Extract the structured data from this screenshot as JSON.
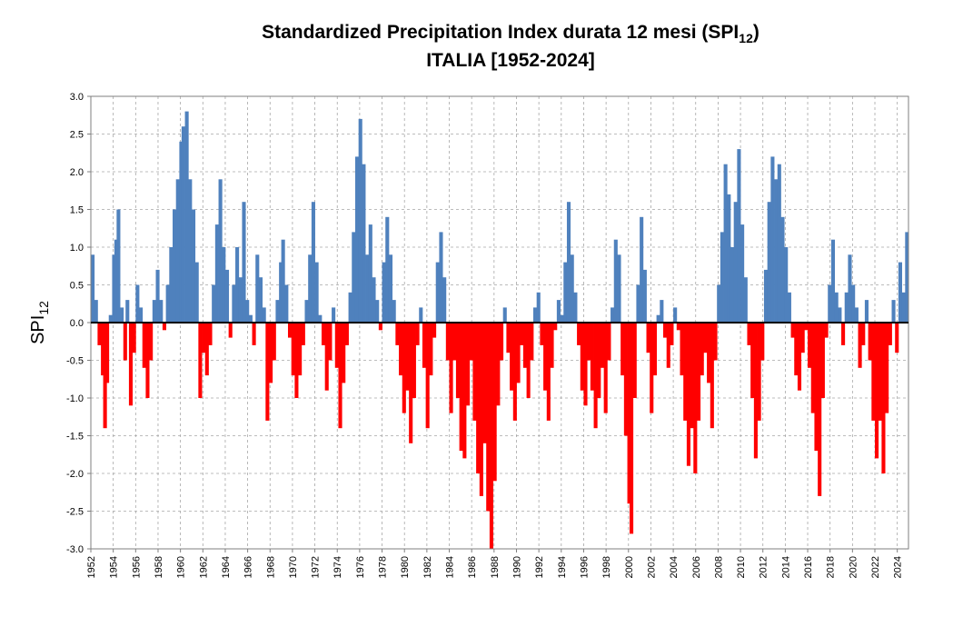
{
  "chart_data": {
    "type": "bar",
    "title_main": "Standardized Precipitation Index durata 12 mesi (SPI",
    "title_sub": "12",
    "title_end": ")",
    "title_line2": "ITALIA [1952-2024]",
    "ylabel_main": "SPI",
    "ylabel_sub": "12",
    "ylim": [
      -3.0,
      3.0
    ],
    "yticks": [
      "3.0",
      "2.5",
      "2.0",
      "1.5",
      "1.0",
      "0.5",
      "0.0",
      "-0.5",
      "-1.0",
      "-1.5",
      "-2.0",
      "-2.5",
      "-3.0"
    ],
    "xlim": [
      1952,
      2025
    ],
    "xticks": [
      "1952",
      "1954",
      "1956",
      "1958",
      "1960",
      "1962",
      "1964",
      "1966",
      "1968",
      "1970",
      "1972",
      "1974",
      "1976",
      "1978",
      "1980",
      "1982",
      "1984",
      "1986",
      "1988",
      "1990",
      "1992",
      "1994",
      "1996",
      "1998",
      "2000",
      "2002",
      "2004",
      "2006",
      "2008",
      "2010",
      "2012",
      "2014",
      "2016",
      "2018",
      "2020",
      "2022",
      "2024"
    ],
    "grid": true,
    "colors": {
      "positive": "#4f81bd",
      "negative": "#ff0000"
    },
    "series": [
      {
        "values": [
          {
            "x": 1952.0,
            "y": 0.9
          },
          {
            "x": 1952.3,
            "y": 0.3
          },
          {
            "x": 1952.6,
            "y": -0.3
          },
          {
            "x": 1952.9,
            "y": -0.7
          },
          {
            "x": 1953.1,
            "y": -1.4
          },
          {
            "x": 1953.3,
            "y": -0.8
          },
          {
            "x": 1953.6,
            "y": 0.1
          },
          {
            "x": 1953.9,
            "y": 0.9
          },
          {
            "x": 1954.1,
            "y": 1.1
          },
          {
            "x": 1954.3,
            "y": 1.5
          },
          {
            "x": 1954.6,
            "y": 0.2
          },
          {
            "x": 1954.9,
            "y": -0.5
          },
          {
            "x": 1955.1,
            "y": 0.3
          },
          {
            "x": 1955.4,
            "y": -1.1
          },
          {
            "x": 1955.7,
            "y": -0.4
          },
          {
            "x": 1956.0,
            "y": 0.5
          },
          {
            "x": 1956.3,
            "y": 0.2
          },
          {
            "x": 1956.6,
            "y": -0.6
          },
          {
            "x": 1956.9,
            "y": -1.0
          },
          {
            "x": 1957.2,
            "y": -0.5
          },
          {
            "x": 1957.5,
            "y": 0.3
          },
          {
            "x": 1957.8,
            "y": 0.7
          },
          {
            "x": 1958.1,
            "y": 0.3
          },
          {
            "x": 1958.4,
            "y": -0.1
          },
          {
            "x": 1958.7,
            "y": 0.5
          },
          {
            "x": 1959.0,
            "y": 1.0
          },
          {
            "x": 1959.3,
            "y": 1.5
          },
          {
            "x": 1959.6,
            "y": 1.9
          },
          {
            "x": 1959.9,
            "y": 2.4
          },
          {
            "x": 1960.1,
            "y": 2.6
          },
          {
            "x": 1960.4,
            "y": 2.8
          },
          {
            "x": 1960.7,
            "y": 1.9
          },
          {
            "x": 1961.0,
            "y": 1.5
          },
          {
            "x": 1961.3,
            "y": 0.8
          },
          {
            "x": 1961.6,
            "y": -1.0
          },
          {
            "x": 1961.9,
            "y": -0.4
          },
          {
            "x": 1962.2,
            "y": -0.7
          },
          {
            "x": 1962.5,
            "y": -0.3
          },
          {
            "x": 1962.8,
            "y": 0.5
          },
          {
            "x": 1963.1,
            "y": 1.3
          },
          {
            "x": 1963.4,
            "y": 1.9
          },
          {
            "x": 1963.7,
            "y": 1.0
          },
          {
            "x": 1964.0,
            "y": 0.7
          },
          {
            "x": 1964.3,
            "y": -0.2
          },
          {
            "x": 1964.6,
            "y": 0.5
          },
          {
            "x": 1964.9,
            "y": 1.0
          },
          {
            "x": 1965.2,
            "y": 0.6
          },
          {
            "x": 1965.5,
            "y": 1.6
          },
          {
            "x": 1965.8,
            "y": 0.3
          },
          {
            "x": 1966.1,
            "y": 0.1
          },
          {
            "x": 1966.4,
            "y": -0.3
          },
          {
            "x": 1966.7,
            "y": 0.9
          },
          {
            "x": 1967.0,
            "y": 0.6
          },
          {
            "x": 1967.3,
            "y": 0.2
          },
          {
            "x": 1967.6,
            "y": -1.3
          },
          {
            "x": 1967.9,
            "y": -0.8
          },
          {
            "x": 1968.2,
            "y": -0.5
          },
          {
            "x": 1968.5,
            "y": 0.3
          },
          {
            "x": 1968.8,
            "y": 0.8
          },
          {
            "x": 1969.0,
            "y": 1.1
          },
          {
            "x": 1969.3,
            "y": 0.5
          },
          {
            "x": 1969.6,
            "y": -0.2
          },
          {
            "x": 1969.9,
            "y": -0.7
          },
          {
            "x": 1970.2,
            "y": -1.0
          },
          {
            "x": 1970.5,
            "y": -0.7
          },
          {
            "x": 1970.8,
            "y": -0.3
          },
          {
            "x": 1971.1,
            "y": 0.3
          },
          {
            "x": 1971.4,
            "y": 0.9
          },
          {
            "x": 1971.7,
            "y": 1.6
          },
          {
            "x": 1972.0,
            "y": 0.8
          },
          {
            "x": 1972.3,
            "y": 0.1
          },
          {
            "x": 1972.6,
            "y": -0.3
          },
          {
            "x": 1972.9,
            "y": -0.9
          },
          {
            "x": 1973.2,
            "y": -0.5
          },
          {
            "x": 1973.5,
            "y": 0.2
          },
          {
            "x": 1973.8,
            "y": -0.6
          },
          {
            "x": 1974.1,
            "y": -1.4
          },
          {
            "x": 1974.4,
            "y": -0.8
          },
          {
            "x": 1974.7,
            "y": -0.3
          },
          {
            "x": 1975.0,
            "y": 0.4
          },
          {
            "x": 1975.3,
            "y": 1.2
          },
          {
            "x": 1975.6,
            "y": 2.2
          },
          {
            "x": 1975.9,
            "y": 2.7
          },
          {
            "x": 1976.2,
            "y": 2.1
          },
          {
            "x": 1976.5,
            "y": 0.9
          },
          {
            "x": 1976.8,
            "y": 1.3
          },
          {
            "x": 1977.1,
            "y": 0.6
          },
          {
            "x": 1977.4,
            "y": 0.3
          },
          {
            "x": 1977.7,
            "y": -0.1
          },
          {
            "x": 1978.0,
            "y": 0.8
          },
          {
            "x": 1978.3,
            "y": 1.4
          },
          {
            "x": 1978.6,
            "y": 0.9
          },
          {
            "x": 1978.9,
            "y": 0.3
          },
          {
            "x": 1979.2,
            "y": -0.3
          },
          {
            "x": 1979.5,
            "y": -0.7
          },
          {
            "x": 1979.8,
            "y": -1.2
          },
          {
            "x": 1980.1,
            "y": -0.9
          },
          {
            "x": 1980.4,
            "y": -1.6
          },
          {
            "x": 1980.7,
            "y": -1.0
          },
          {
            "x": 1981.0,
            "y": -0.3
          },
          {
            "x": 1981.3,
            "y": 0.2
          },
          {
            "x": 1981.6,
            "y": -0.6
          },
          {
            "x": 1981.9,
            "y": -1.4
          },
          {
            "x": 1982.2,
            "y": -0.7
          },
          {
            "x": 1982.5,
            "y": -0.2
          },
          {
            "x": 1982.8,
            "y": 0.8
          },
          {
            "x": 1983.1,
            "y": 1.2
          },
          {
            "x": 1983.4,
            "y": 0.6
          },
          {
            "x": 1983.7,
            "y": -0.5
          },
          {
            "x": 1984.0,
            "y": -1.2
          },
          {
            "x": 1984.3,
            "y": -0.5
          },
          {
            "x": 1984.6,
            "y": -1.0
          },
          {
            "x": 1984.9,
            "y": -1.7
          },
          {
            "x": 1985.2,
            "y": -1.8
          },
          {
            "x": 1985.5,
            "y": -1.1
          },
          {
            "x": 1985.8,
            "y": -0.5
          },
          {
            "x": 1986.1,
            "y": -1.3
          },
          {
            "x": 1986.4,
            "y": -2.0
          },
          {
            "x": 1986.7,
            "y": -2.3
          },
          {
            "x": 1987.0,
            "y": -1.6
          },
          {
            "x": 1987.3,
            "y": -2.5
          },
          {
            "x": 1987.6,
            "y": -3.0
          },
          {
            "x": 1987.9,
            "y": -2.1
          },
          {
            "x": 1988.2,
            "y": -1.1
          },
          {
            "x": 1988.5,
            "y": -0.5
          },
          {
            "x": 1988.8,
            "y": 0.2
          },
          {
            "x": 1989.1,
            "y": -0.4
          },
          {
            "x": 1989.4,
            "y": -0.9
          },
          {
            "x": 1989.7,
            "y": -1.3
          },
          {
            "x": 1990.0,
            "y": -0.8
          },
          {
            "x": 1990.3,
            "y": -0.3
          },
          {
            "x": 1990.6,
            "y": -0.6
          },
          {
            "x": 1990.9,
            "y": -1.0
          },
          {
            "x": 1991.2,
            "y": -0.5
          },
          {
            "x": 1991.5,
            "y": 0.2
          },
          {
            "x": 1991.8,
            "y": 0.4
          },
          {
            "x": 1992.1,
            "y": -0.3
          },
          {
            "x": 1992.4,
            "y": -0.9
          },
          {
            "x": 1992.7,
            "y": -1.3
          },
          {
            "x": 1993.0,
            "y": -0.6
          },
          {
            "x": 1993.3,
            "y": -0.1
          },
          {
            "x": 1993.6,
            "y": 0.3
          },
          {
            "x": 1993.9,
            "y": 0.1
          },
          {
            "x": 1994.2,
            "y": 0.8
          },
          {
            "x": 1994.5,
            "y": 1.6
          },
          {
            "x": 1994.8,
            "y": 0.9
          },
          {
            "x": 1995.1,
            "y": 0.4
          },
          {
            "x": 1995.4,
            "y": -0.3
          },
          {
            "x": 1995.7,
            "y": -0.9
          },
          {
            "x": 1996.0,
            "y": -1.1
          },
          {
            "x": 1996.3,
            "y": -0.5
          },
          {
            "x": 1996.6,
            "y": -0.9
          },
          {
            "x": 1996.9,
            "y": -1.4
          },
          {
            "x": 1997.2,
            "y": -1.0
          },
          {
            "x": 1997.5,
            "y": -0.6
          },
          {
            "x": 1997.8,
            "y": -1.2
          },
          {
            "x": 1998.1,
            "y": -0.5
          },
          {
            "x": 1998.4,
            "y": 0.2
          },
          {
            "x": 1998.7,
            "y": 1.1
          },
          {
            "x": 1999.0,
            "y": 0.9
          },
          {
            "x": 1999.3,
            "y": -0.7
          },
          {
            "x": 1999.6,
            "y": -1.5
          },
          {
            "x": 1999.9,
            "y": -2.4
          },
          {
            "x": 2000.1,
            "y": -2.8
          },
          {
            "x": 2000.4,
            "y": -1.0
          },
          {
            "x": 2000.7,
            "y": 0.5
          },
          {
            "x": 2001.0,
            "y": 1.4
          },
          {
            "x": 2001.3,
            "y": 0.7
          },
          {
            "x": 2001.6,
            "y": -0.4
          },
          {
            "x": 2001.9,
            "y": -1.2
          },
          {
            "x": 2002.2,
            "y": -0.7
          },
          {
            "x": 2002.5,
            "y": 0.1
          },
          {
            "x": 2002.8,
            "y": 0.3
          },
          {
            "x": 2003.1,
            "y": -0.2
          },
          {
            "x": 2003.4,
            "y": -0.6
          },
          {
            "x": 2003.7,
            "y": -0.3
          },
          {
            "x": 2004.0,
            "y": 0.2
          },
          {
            "x": 2004.3,
            "y": -0.1
          },
          {
            "x": 2004.6,
            "y": -0.7
          },
          {
            "x": 2004.9,
            "y": -1.3
          },
          {
            "x": 2005.2,
            "y": -1.9
          },
          {
            "x": 2005.5,
            "y": -1.4
          },
          {
            "x": 2005.8,
            "y": -2.0
          },
          {
            "x": 2006.1,
            "y": -1.3
          },
          {
            "x": 2006.4,
            "y": -0.7
          },
          {
            "x": 2006.7,
            "y": -0.4
          },
          {
            "x": 2007.0,
            "y": -0.8
          },
          {
            "x": 2007.3,
            "y": -1.4
          },
          {
            "x": 2007.6,
            "y": -0.5
          },
          {
            "x": 2007.9,
            "y": 0.5
          },
          {
            "x": 2008.2,
            "y": 1.2
          },
          {
            "x": 2008.5,
            "y": 2.1
          },
          {
            "x": 2008.8,
            "y": 1.7
          },
          {
            "x": 2009.1,
            "y": 1.0
          },
          {
            "x": 2009.4,
            "y": 1.6
          },
          {
            "x": 2009.7,
            "y": 2.3
          },
          {
            "x": 2010.0,
            "y": 1.3
          },
          {
            "x": 2010.3,
            "y": 0.6
          },
          {
            "x": 2010.6,
            "y": -0.3
          },
          {
            "x": 2010.9,
            "y": -1.0
          },
          {
            "x": 2011.2,
            "y": -1.8
          },
          {
            "x": 2011.5,
            "y": -1.3
          },
          {
            "x": 2011.8,
            "y": -0.5
          },
          {
            "x": 2012.1,
            "y": 0.7
          },
          {
            "x": 2012.4,
            "y": 1.6
          },
          {
            "x": 2012.7,
            "y": 2.2
          },
          {
            "x": 2013.0,
            "y": 1.9
          },
          {
            "x": 2013.3,
            "y": 2.1
          },
          {
            "x": 2013.6,
            "y": 1.4
          },
          {
            "x": 2013.9,
            "y": 1.0
          },
          {
            "x": 2014.2,
            "y": 0.4
          },
          {
            "x": 2014.5,
            "y": -0.2
          },
          {
            "x": 2014.8,
            "y": -0.7
          },
          {
            "x": 2015.1,
            "y": -0.9
          },
          {
            "x": 2015.4,
            "y": -0.4
          },
          {
            "x": 2015.7,
            "y": -0.1
          },
          {
            "x": 2016.0,
            "y": -0.6
          },
          {
            "x": 2016.3,
            "y": -1.2
          },
          {
            "x": 2016.6,
            "y": -1.7
          },
          {
            "x": 2016.9,
            "y": -2.3
          },
          {
            "x": 2017.2,
            "y": -1.0
          },
          {
            "x": 2017.5,
            "y": -0.2
          },
          {
            "x": 2017.8,
            "y": 0.5
          },
          {
            "x": 2018.1,
            "y": 1.1
          },
          {
            "x": 2018.4,
            "y": 0.4
          },
          {
            "x": 2018.7,
            "y": 0.2
          },
          {
            "x": 2019.0,
            "y": -0.3
          },
          {
            "x": 2019.3,
            "y": 0.4
          },
          {
            "x": 2019.6,
            "y": 0.9
          },
          {
            "x": 2019.9,
            "y": 0.5
          },
          {
            "x": 2020.2,
            "y": 0.2
          },
          {
            "x": 2020.5,
            "y": -0.6
          },
          {
            "x": 2020.8,
            "y": -0.3
          },
          {
            "x": 2021.1,
            "y": 0.3
          },
          {
            "x": 2021.4,
            "y": -0.5
          },
          {
            "x": 2021.7,
            "y": -1.3
          },
          {
            "x": 2022.0,
            "y": -1.8
          },
          {
            "x": 2022.3,
            "y": -1.3
          },
          {
            "x": 2022.6,
            "y": -2.0
          },
          {
            "x": 2022.9,
            "y": -1.2
          },
          {
            "x": 2023.2,
            "y": -0.3
          },
          {
            "x": 2023.5,
            "y": 0.3
          },
          {
            "x": 2023.8,
            "y": -0.4
          },
          {
            "x": 2024.1,
            "y": 0.8
          },
          {
            "x": 2024.4,
            "y": 0.4
          },
          {
            "x": 2024.7,
            "y": 1.2
          }
        ]
      }
    ]
  }
}
